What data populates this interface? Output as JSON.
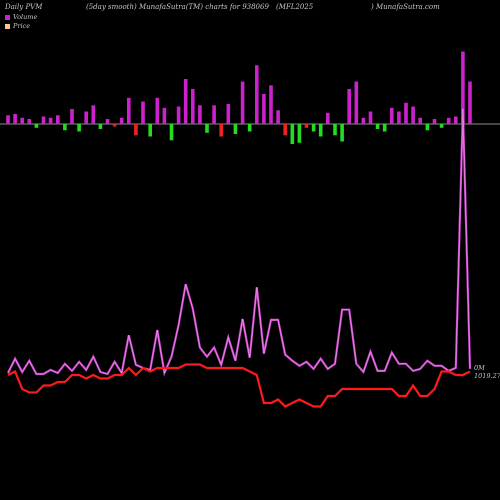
{
  "header": {
    "left": "Daily PVM",
    "mid1": "(5day smooth) MunafaSutra(TM) charts for 938069",
    "mid2": "(MFL2025",
    "right": ") MunafaSutra.com"
  },
  "legend": {
    "volume_label": "Volume",
    "price_label": "Price"
  },
  "annotations": {
    "volume_zero": "0M",
    "last_price": "1019.27"
  },
  "colors": {
    "background": "#000000",
    "volume_line": "#cc44cc",
    "price_line": "#ff1a1a",
    "bar_up": "#cc22cc",
    "bar_down_red": "#ee2222",
    "bar_down_green": "#22dd22",
    "baseline": "#bbbbbb"
  },
  "chart_data": {
    "type": "line",
    "x": [
      1,
      2,
      3,
      4,
      5,
      6,
      7,
      8,
      9,
      10,
      11,
      12,
      13,
      14,
      15,
      16,
      17,
      18,
      19,
      20,
      21,
      22,
      23,
      24,
      25,
      26,
      27,
      28,
      29,
      30,
      31,
      32,
      33,
      34,
      35,
      36,
      37,
      38,
      39,
      40,
      41,
      42,
      43,
      44,
      45,
      46,
      47,
      48,
      49,
      50,
      51,
      52,
      53,
      54,
      55,
      56,
      57,
      58,
      59,
      60,
      61,
      62,
      63,
      64,
      65,
      66
    ],
    "series": [
      {
        "name": "Volume",
        "values": [
          2.1,
          3.5,
          2.2,
          3.3,
          2.0,
          2.0,
          2.4,
          2.1,
          3.0,
          2.3,
          3.2,
          2.4,
          3.7,
          2.2,
          2.0,
          3.2,
          2.1,
          5.8,
          2.9,
          2.6,
          2.4,
          6.3,
          2.1,
          3.7,
          6.8,
          10.8,
          8.4,
          4.6,
          3.7,
          4.6,
          2.9,
          5.6,
          3.3,
          7.4,
          3.6,
          10.5,
          4.0,
          7.3,
          7.3,
          3.9,
          3.3,
          2.8,
          3.2,
          2.5,
          3.5,
          2.5,
          3.0,
          8.3,
          8.3,
          3.0,
          2.2,
          4.2,
          2.3,
          2.3,
          4.1,
          3.0,
          3.0,
          2.3,
          2.5,
          3.3,
          2.8,
          2.8,
          2.3,
          2.6,
          28.0,
          2.5
        ]
      },
      {
        "name": "Price",
        "values": [
          1040,
          1041,
          1036,
          1035,
          1035,
          1037,
          1037,
          1038,
          1038,
          1040,
          1040,
          1039,
          1040,
          1039,
          1039,
          1040,
          1040,
          1042,
          1040,
          1042,
          1041,
          1042,
          1042,
          1042,
          1042,
          1043,
          1043,
          1043,
          1042,
          1042,
          1042,
          1042,
          1042,
          1042,
          1041,
          1040,
          1032,
          1032,
          1033,
          1031,
          1032,
          1033,
          1032,
          1031,
          1031,
          1034,
          1034,
          1036,
          1036,
          1036,
          1036,
          1036,
          1036,
          1036,
          1036,
          1034,
          1034,
          1037,
          1034,
          1034,
          1036,
          1041,
          1041,
          1040,
          1040,
          1041
        ]
      }
    ],
    "bars": [
      0.7,
      0.8,
      0.5,
      0.4,
      -0.3,
      0.6,
      0.5,
      0.7,
      -0.5,
      1.2,
      -0.6,
      1.0,
      1.5,
      -0.4,
      0.4,
      -0.2,
      0.5,
      2.1,
      -0.9,
      1.8,
      -1.0,
      2.1,
      1.3,
      -1.3,
      1.4,
      3.6,
      2.8,
      1.5,
      -0.7,
      1.5,
      -1.0,
      1.6,
      -0.8,
      3.4,
      -0.6,
      4.7,
      2.4,
      3.1,
      1.1,
      -0.9,
      -1.6,
      -1.5,
      -0.3,
      -0.6,
      -1.0,
      0.9,
      -0.9,
      -1.4,
      2.8,
      3.4,
      0.5,
      1.0,
      -0.4,
      -0.6,
      1.3,
      1.0,
      1.7,
      1.4,
      0.5,
      -0.5,
      0.4,
      -0.3,
      0.5,
      0.6,
      5.8,
      3.4
    ],
    "grid": false,
    "legend_position": "top-left"
  }
}
